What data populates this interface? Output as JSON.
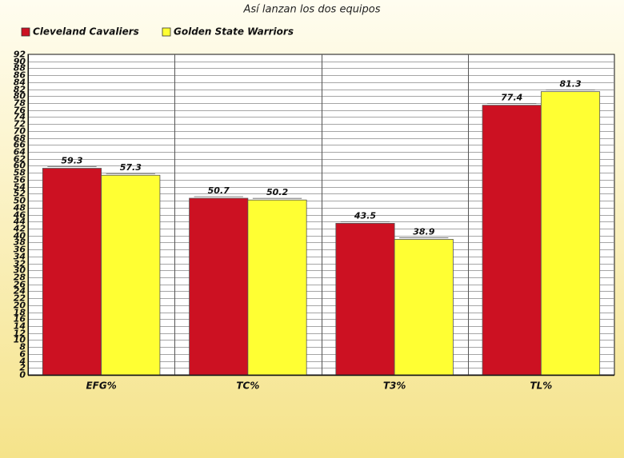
{
  "chart_data": {
    "type": "bar",
    "title": "Así lanzan los dos equipos",
    "categories": [
      "EFG%",
      "TC%",
      "T3%",
      "TL%"
    ],
    "series": [
      {
        "name": "Cleveland Cavaliers",
        "values": [
          59.3,
          50.7,
          43.5,
          77.4
        ],
        "color": "#cc1122"
      },
      {
        "name": "Golden State Warriors",
        "values": [
          57.3,
          50.2,
          38.9,
          81.3
        ],
        "color": "#ffff33"
      }
    ],
    "xlabel": "",
    "ylabel": "",
    "ylim": [
      0,
      92
    ],
    "ytick_step": 2,
    "grid": true,
    "legend": "top-left"
  },
  "style": {
    "background_top": "#fffdf0",
    "background_bottom": "#f5e38a",
    "plot_background": "#ffffff",
    "grid_color": "#888888",
    "axis_color": "#111111",
    "bar_border": "#555555",
    "panel_divider": "#555555"
  }
}
